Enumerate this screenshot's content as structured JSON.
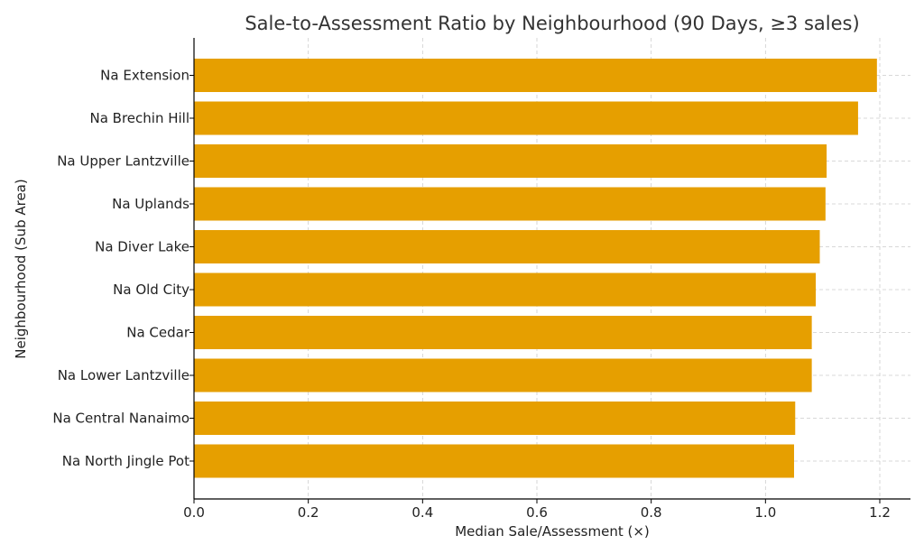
{
  "chart_data": {
    "type": "bar",
    "orientation": "horizontal",
    "title": "Sale-to-Assessment Ratio by Neighbourhood (90 Days, ≥3 sales)",
    "xlabel": "Median Sale/Assessment (×)",
    "ylabel": "Neighbourhood (Sub Area)",
    "categories": [
      "Na Extension",
      "Na Brechin Hill",
      "Na Upper Lantzville",
      "Na Uplands",
      "Na Diver Lake",
      "Na Old City",
      "Na Cedar",
      "Na Lower Lantzville",
      "Na Central Nanaimo",
      "Na North Jingle Pot"
    ],
    "values": [
      1.195,
      1.162,
      1.107,
      1.105,
      1.095,
      1.088,
      1.081,
      1.081,
      1.052,
      1.05
    ],
    "xlim": [
      0,
      1.25
    ],
    "xticks": [
      "0.0",
      "0.2",
      "0.4",
      "0.6",
      "0.8",
      "1.0",
      "1.2"
    ],
    "grid": true,
    "bar_color": "#E69F00"
  }
}
